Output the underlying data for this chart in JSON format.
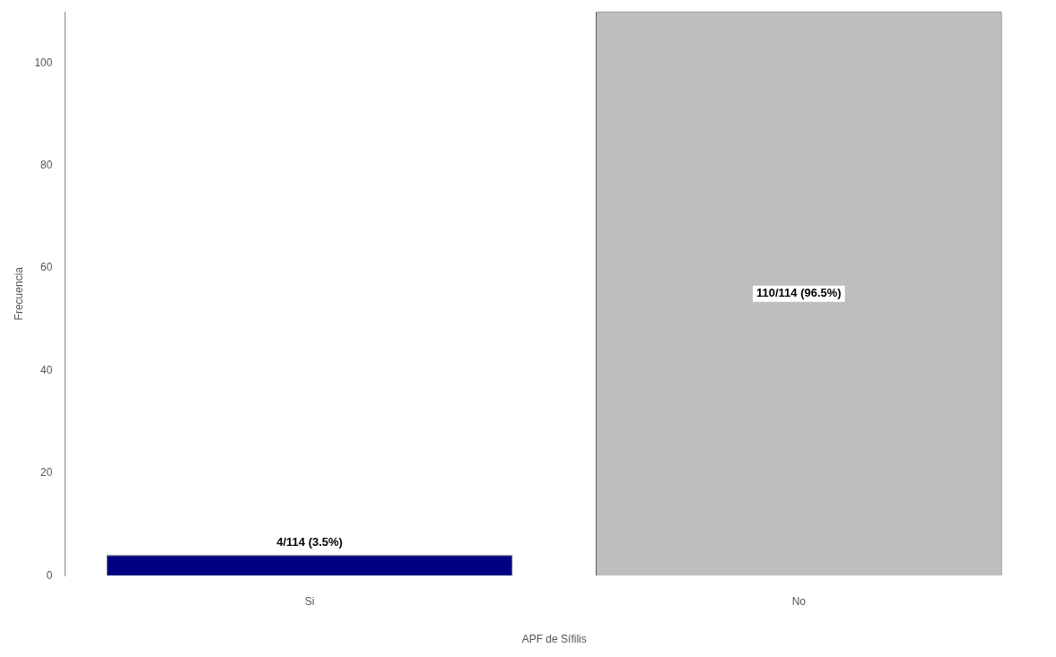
{
  "chart_data": {
    "type": "bar",
    "xlabel": "APF de Sífilis",
    "ylabel": "Frecuencia",
    "categories": [
      "Si",
      "No"
    ],
    "values": [
      4,
      110
    ],
    "colors": [
      "#000080",
      "#bebebe"
    ],
    "value_labels": [
      "4/114 (3.5%)",
      "110/114 (96.5%)"
    ],
    "ylim": [
      0,
      110
    ],
    "yticks": [
      0,
      20,
      40,
      60,
      80,
      100
    ],
    "grid": false,
    "legend": false
  }
}
